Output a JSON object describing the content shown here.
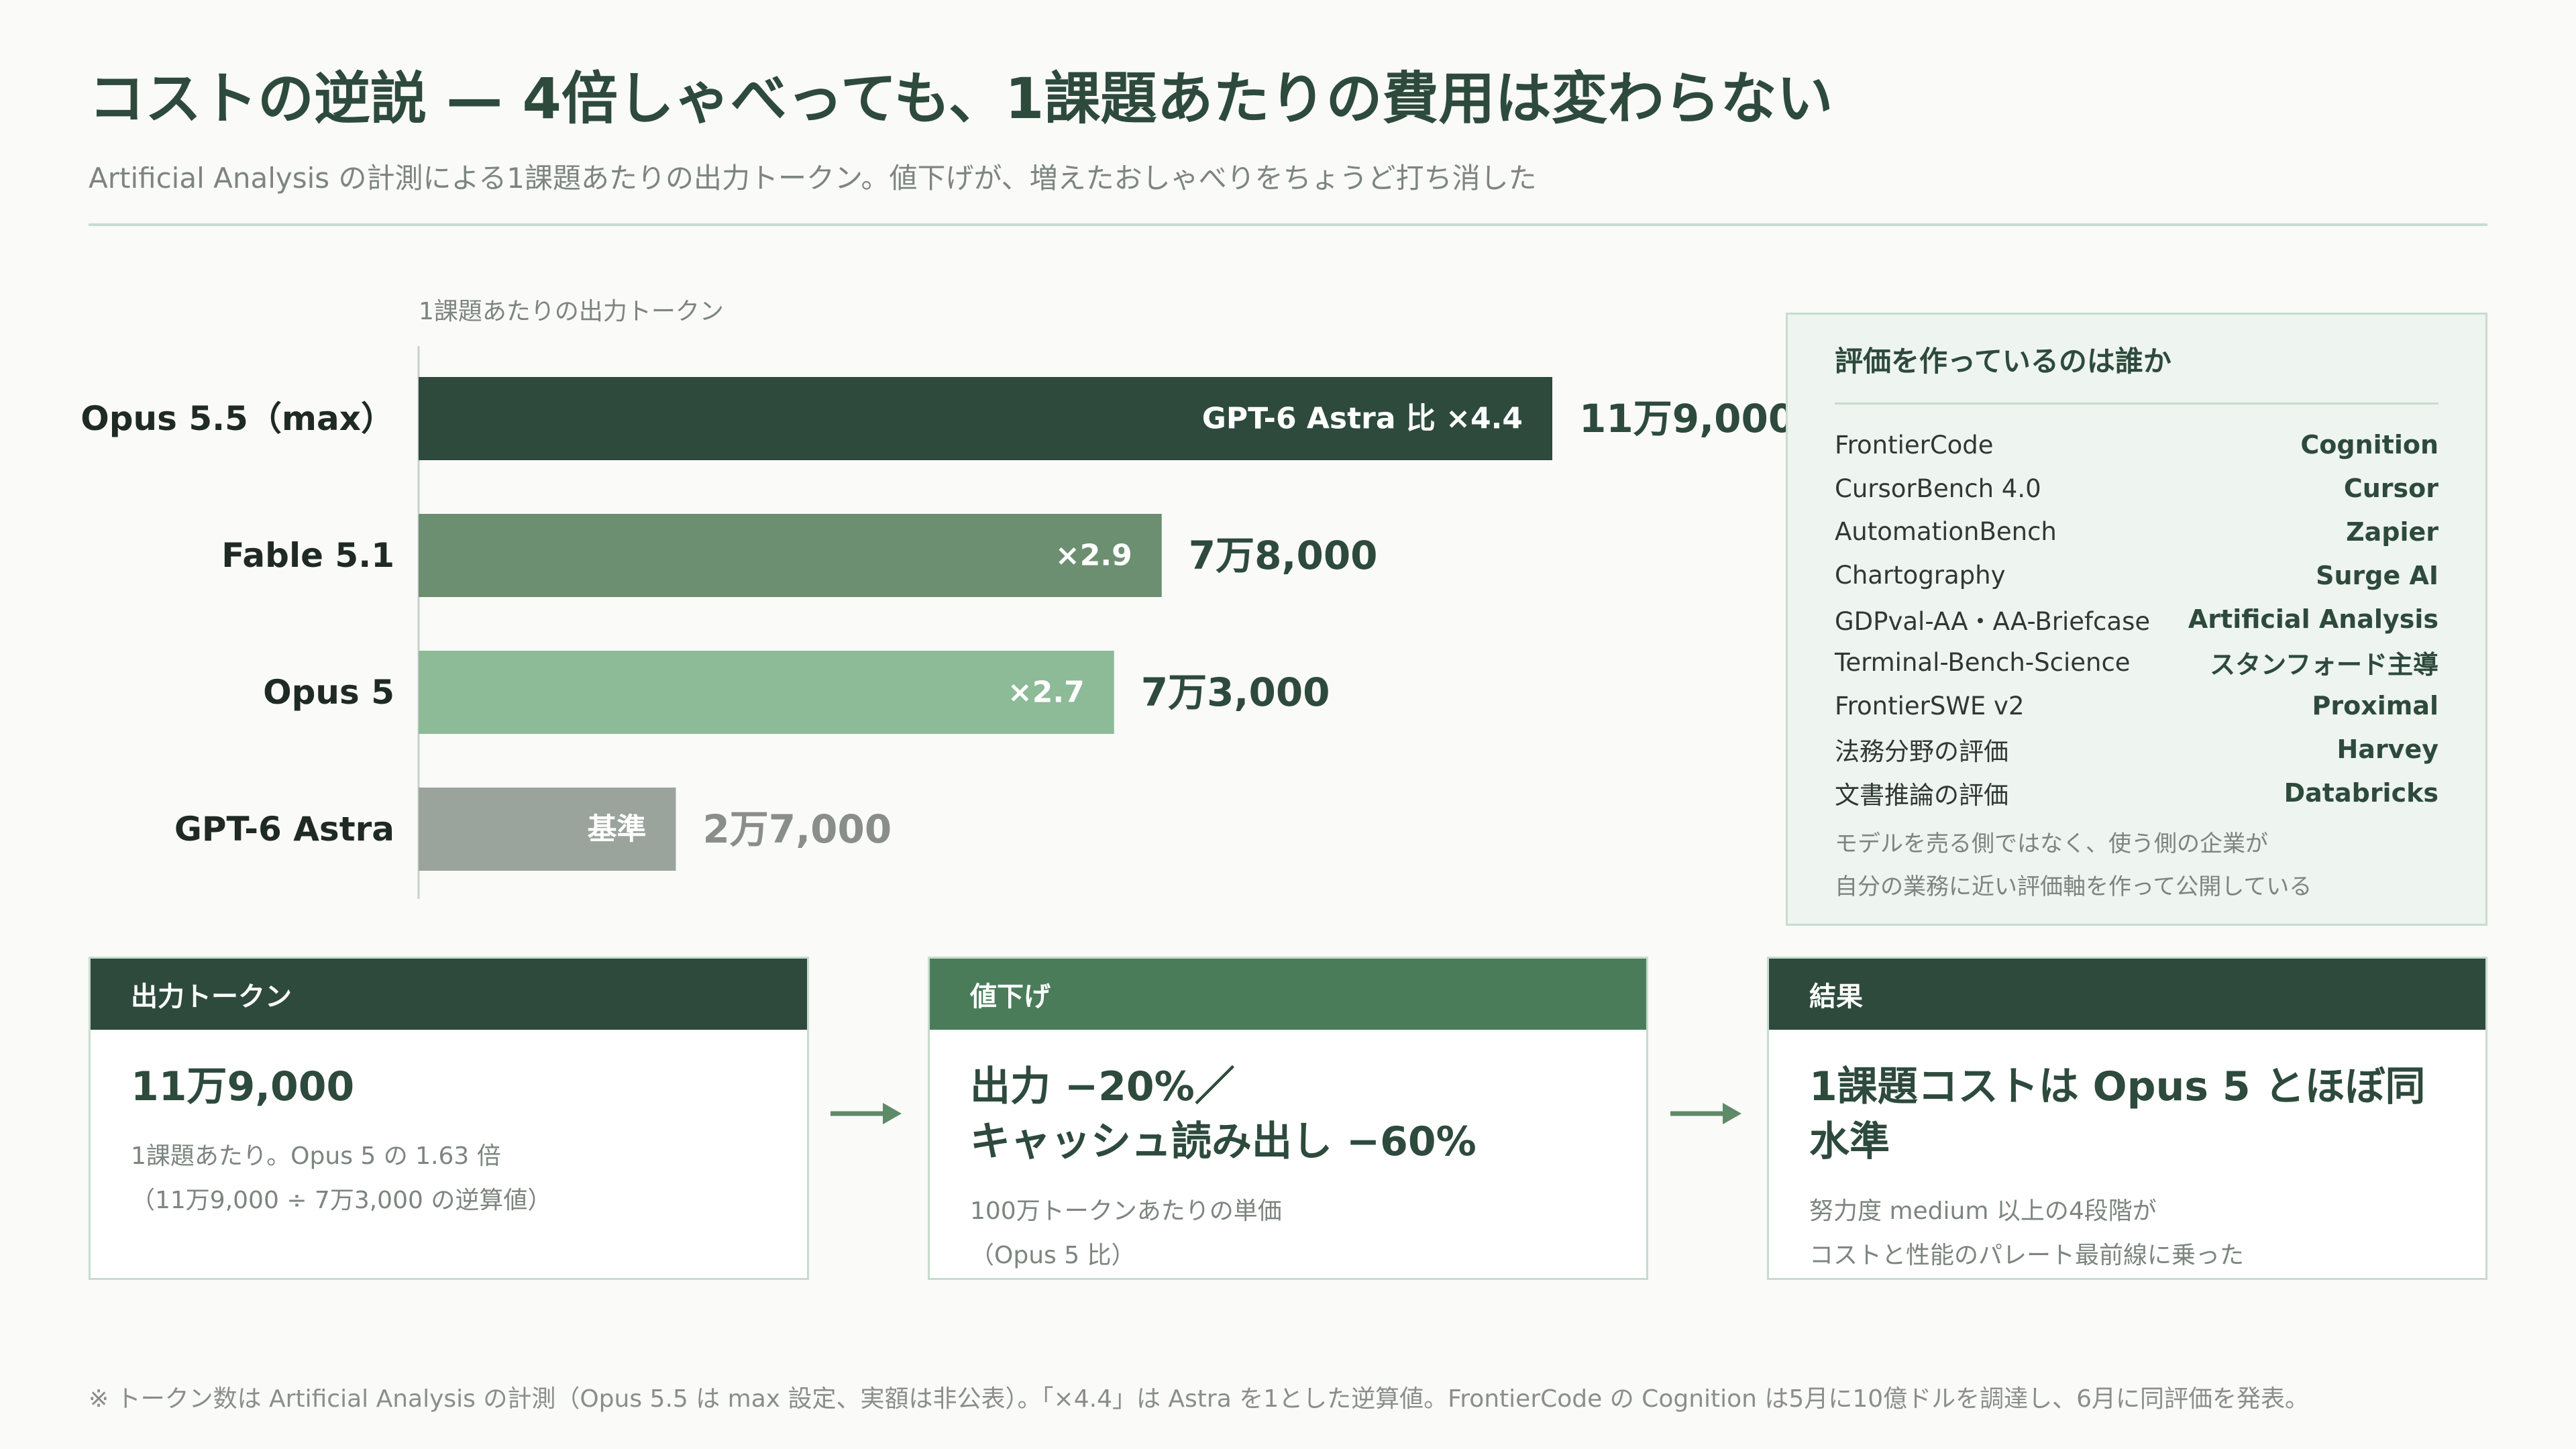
{
  "title": "コストの逆説 — 4倍しゃべっても、1課題あたりの費用は変わらない",
  "subtitle": "Artificial Analysis の計測による1課題あたりの出力トークン。値下げが、増えたおしゃべりをちょうど打ち消した",
  "chart_data": {
    "type": "bar",
    "orientation": "horizontal",
    "ylabel": "1課題あたりの出力トークン",
    "categories": [
      "Opus 5.5（max）",
      "Fable 5.1",
      "Opus 5",
      "GPT-6 Astra"
    ],
    "values": [
      119000,
      78000,
      73000,
      27000
    ],
    "value_labels": [
      "11万9,000",
      "7万8,000",
      "7万3,000",
      "2万7,000"
    ],
    "in_bar_labels": [
      "GPT-6 Astra 比 ×4.4",
      "×2.9",
      "×2.7",
      "基準"
    ],
    "colors": [
      "#2d4a3d",
      "#6b8f70",
      "#8dba97",
      "#9aa39c"
    ],
    "xlim": [
      0,
      119000
    ]
  },
  "panel": {
    "title": "評価を作っているのは誰か",
    "rows": [
      {
        "bench": "FrontierCode",
        "org": "Cognition"
      },
      {
        "bench": "CursorBench 4.0",
        "org": "Cursor"
      },
      {
        "bench": "AutomationBench",
        "org": "Zapier"
      },
      {
        "bench": "Chartography",
        "org": "Surge AI"
      },
      {
        "bench": "GDPval-AA・AA-Briefcase",
        "org": "Artificial Analysis"
      },
      {
        "bench": "Terminal-Bench-Science",
        "org": "スタンフォード主導"
      },
      {
        "bench": "FrontierSWE v2",
        "org": "Proximal"
      },
      {
        "bench": "法務分野の評価",
        "org": "Harvey"
      },
      {
        "bench": "文書推論の評価",
        "org": "Databricks"
      }
    ],
    "note_line1": "モデルを売る側ではなく、使う側の企業が",
    "note_line2": "自分の業務に近い評価軸を作って公開している"
  },
  "cards": [
    {
      "head": "出力トークン",
      "head_color": "#2d4a3d",
      "main_line1": "11万9,000",
      "main_line2": "",
      "sub_line1": "1課題あたり。Opus 5 の 1.63 倍",
      "sub_line2": "（11万9,000 ÷ 7万3,000 の逆算値）"
    },
    {
      "head": "値下げ",
      "head_color": "#4a7c5a",
      "main_line1": "出力 −20%／",
      "main_line2": "キャッシュ読み出し −60%",
      "sub_line1": "100万トークンあたりの単価",
      "sub_line2": "（Opus 5 比）"
    },
    {
      "head": "結果",
      "head_color": "#2d4a3d",
      "main_line1": "1課題コストは Opus 5 とほぼ同水準",
      "main_line2": "",
      "sub_line1": "努力度 medium 以上の4段階が",
      "sub_line2": "コストと性能のパレート最前線に乗った"
    }
  ],
  "footnote": "※ トークン数は Artificial Analysis の計測（Opus 5.5 は max 設定、実額は非公表）。「×4.4」は Astra を1とした逆算値。FrontierCode の Cognition は5月に10億ドルを調達し、6月に同評価を発表。"
}
